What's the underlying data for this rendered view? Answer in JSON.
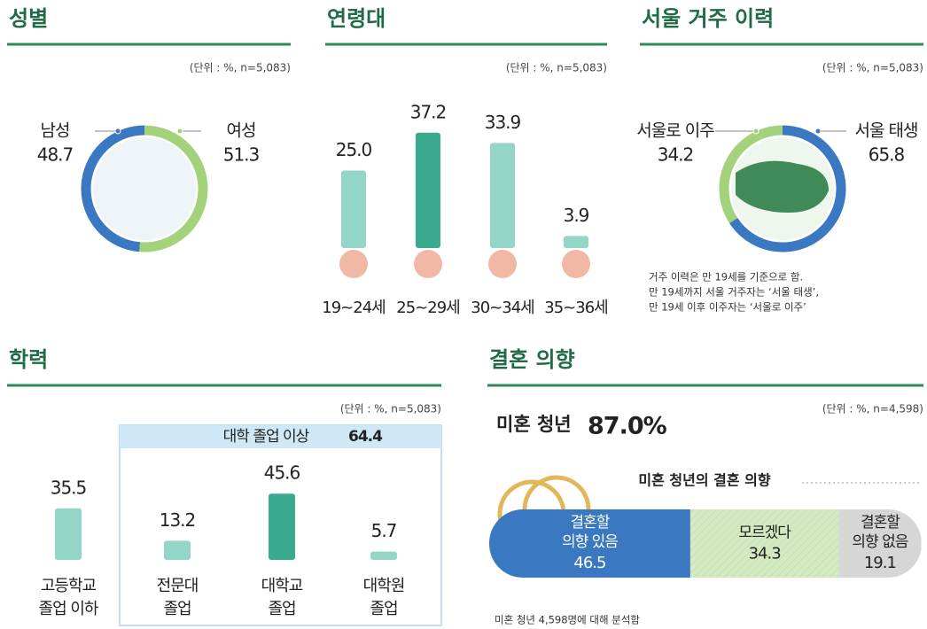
{
  "chart_data": [
    {
      "type": "donut",
      "title": "성별",
      "unit": "(단위 : %, n=5,083)",
      "categories": [
        "남성",
        "여성"
      ],
      "values": [
        48.7,
        51.3
      ],
      "colors": [
        "#3a78c2",
        "#a4d27a"
      ]
    },
    {
      "type": "bar",
      "title": "연령대",
      "unit": "(단위 : %, n=5,083)",
      "categories": [
        "19~24세",
        "25~29세",
        "30~34세",
        "35~36세"
      ],
      "values": [
        25.0,
        37.2,
        33.9,
        3.9
      ],
      "value_labels": [
        "25.0",
        "37.2",
        "33.9",
        "3.9"
      ],
      "colors": [
        "#93d5c6",
        "#3bab8f",
        "#93d5c6",
        "#93d5c6"
      ],
      "ylim": [
        0,
        40
      ]
    },
    {
      "type": "donut",
      "title": "서울 거주 이력",
      "unit": "(단위 : %, n=5,083)",
      "categories": [
        "서울로 이주",
        "서울 태생"
      ],
      "values": [
        34.2,
        65.8
      ],
      "colors": [
        "#a4d27a",
        "#3a78c2"
      ],
      "notes": [
        "거주 이력은 만 19세를 기준으로 함.",
        "만 19세까지 서울 거주자는 ‘서울 태생’,",
        "만 19세 이후 이주자는 ‘서울로 이주’"
      ]
    },
    {
      "type": "bar",
      "title": "학력",
      "unit": "(단위 : %, n=5,083)",
      "categories": [
        [
          "고등학교",
          "졸업 이하"
        ],
        [
          "전문대",
          "졸업"
        ],
        [
          "대학교",
          "졸업"
        ],
        [
          "대학원",
          "졸업"
        ]
      ],
      "values": [
        35.5,
        13.2,
        45.6,
        5.7
      ],
      "colors": [
        "#93d5c6",
        "#93d5c6",
        "#3bab8f",
        "#93d5c6"
      ],
      "ylim": [
        0,
        50
      ],
      "group_label": "대학 졸업 이상",
      "group_value": 64.4
    },
    {
      "type": "stacked_hbar",
      "title": "결혼 의향",
      "unit": "(단위 : %, n=4,598)",
      "headline": "미혼 청년",
      "headline_value": 87.0,
      "headline_value_label": "87.0%",
      "subtitle": "미혼 청년의 결혼 의향",
      "categories": [
        [
          "결혼할",
          "의향 있음"
        ],
        [
          "모르겠다"
        ],
        [
          "결혼할",
          "의향 없음"
        ]
      ],
      "values": [
        46.5,
        34.3,
        19.1
      ],
      "colors": [
        "#3a78c2",
        "#d5eac2",
        "#d6d6d6"
      ],
      "text_colors": [
        "#ffffff",
        "#222222",
        "#222222"
      ],
      "xlim": [
        0,
        100
      ],
      "note": "미혼 청년 4,598명에 대해 분석함"
    }
  ]
}
